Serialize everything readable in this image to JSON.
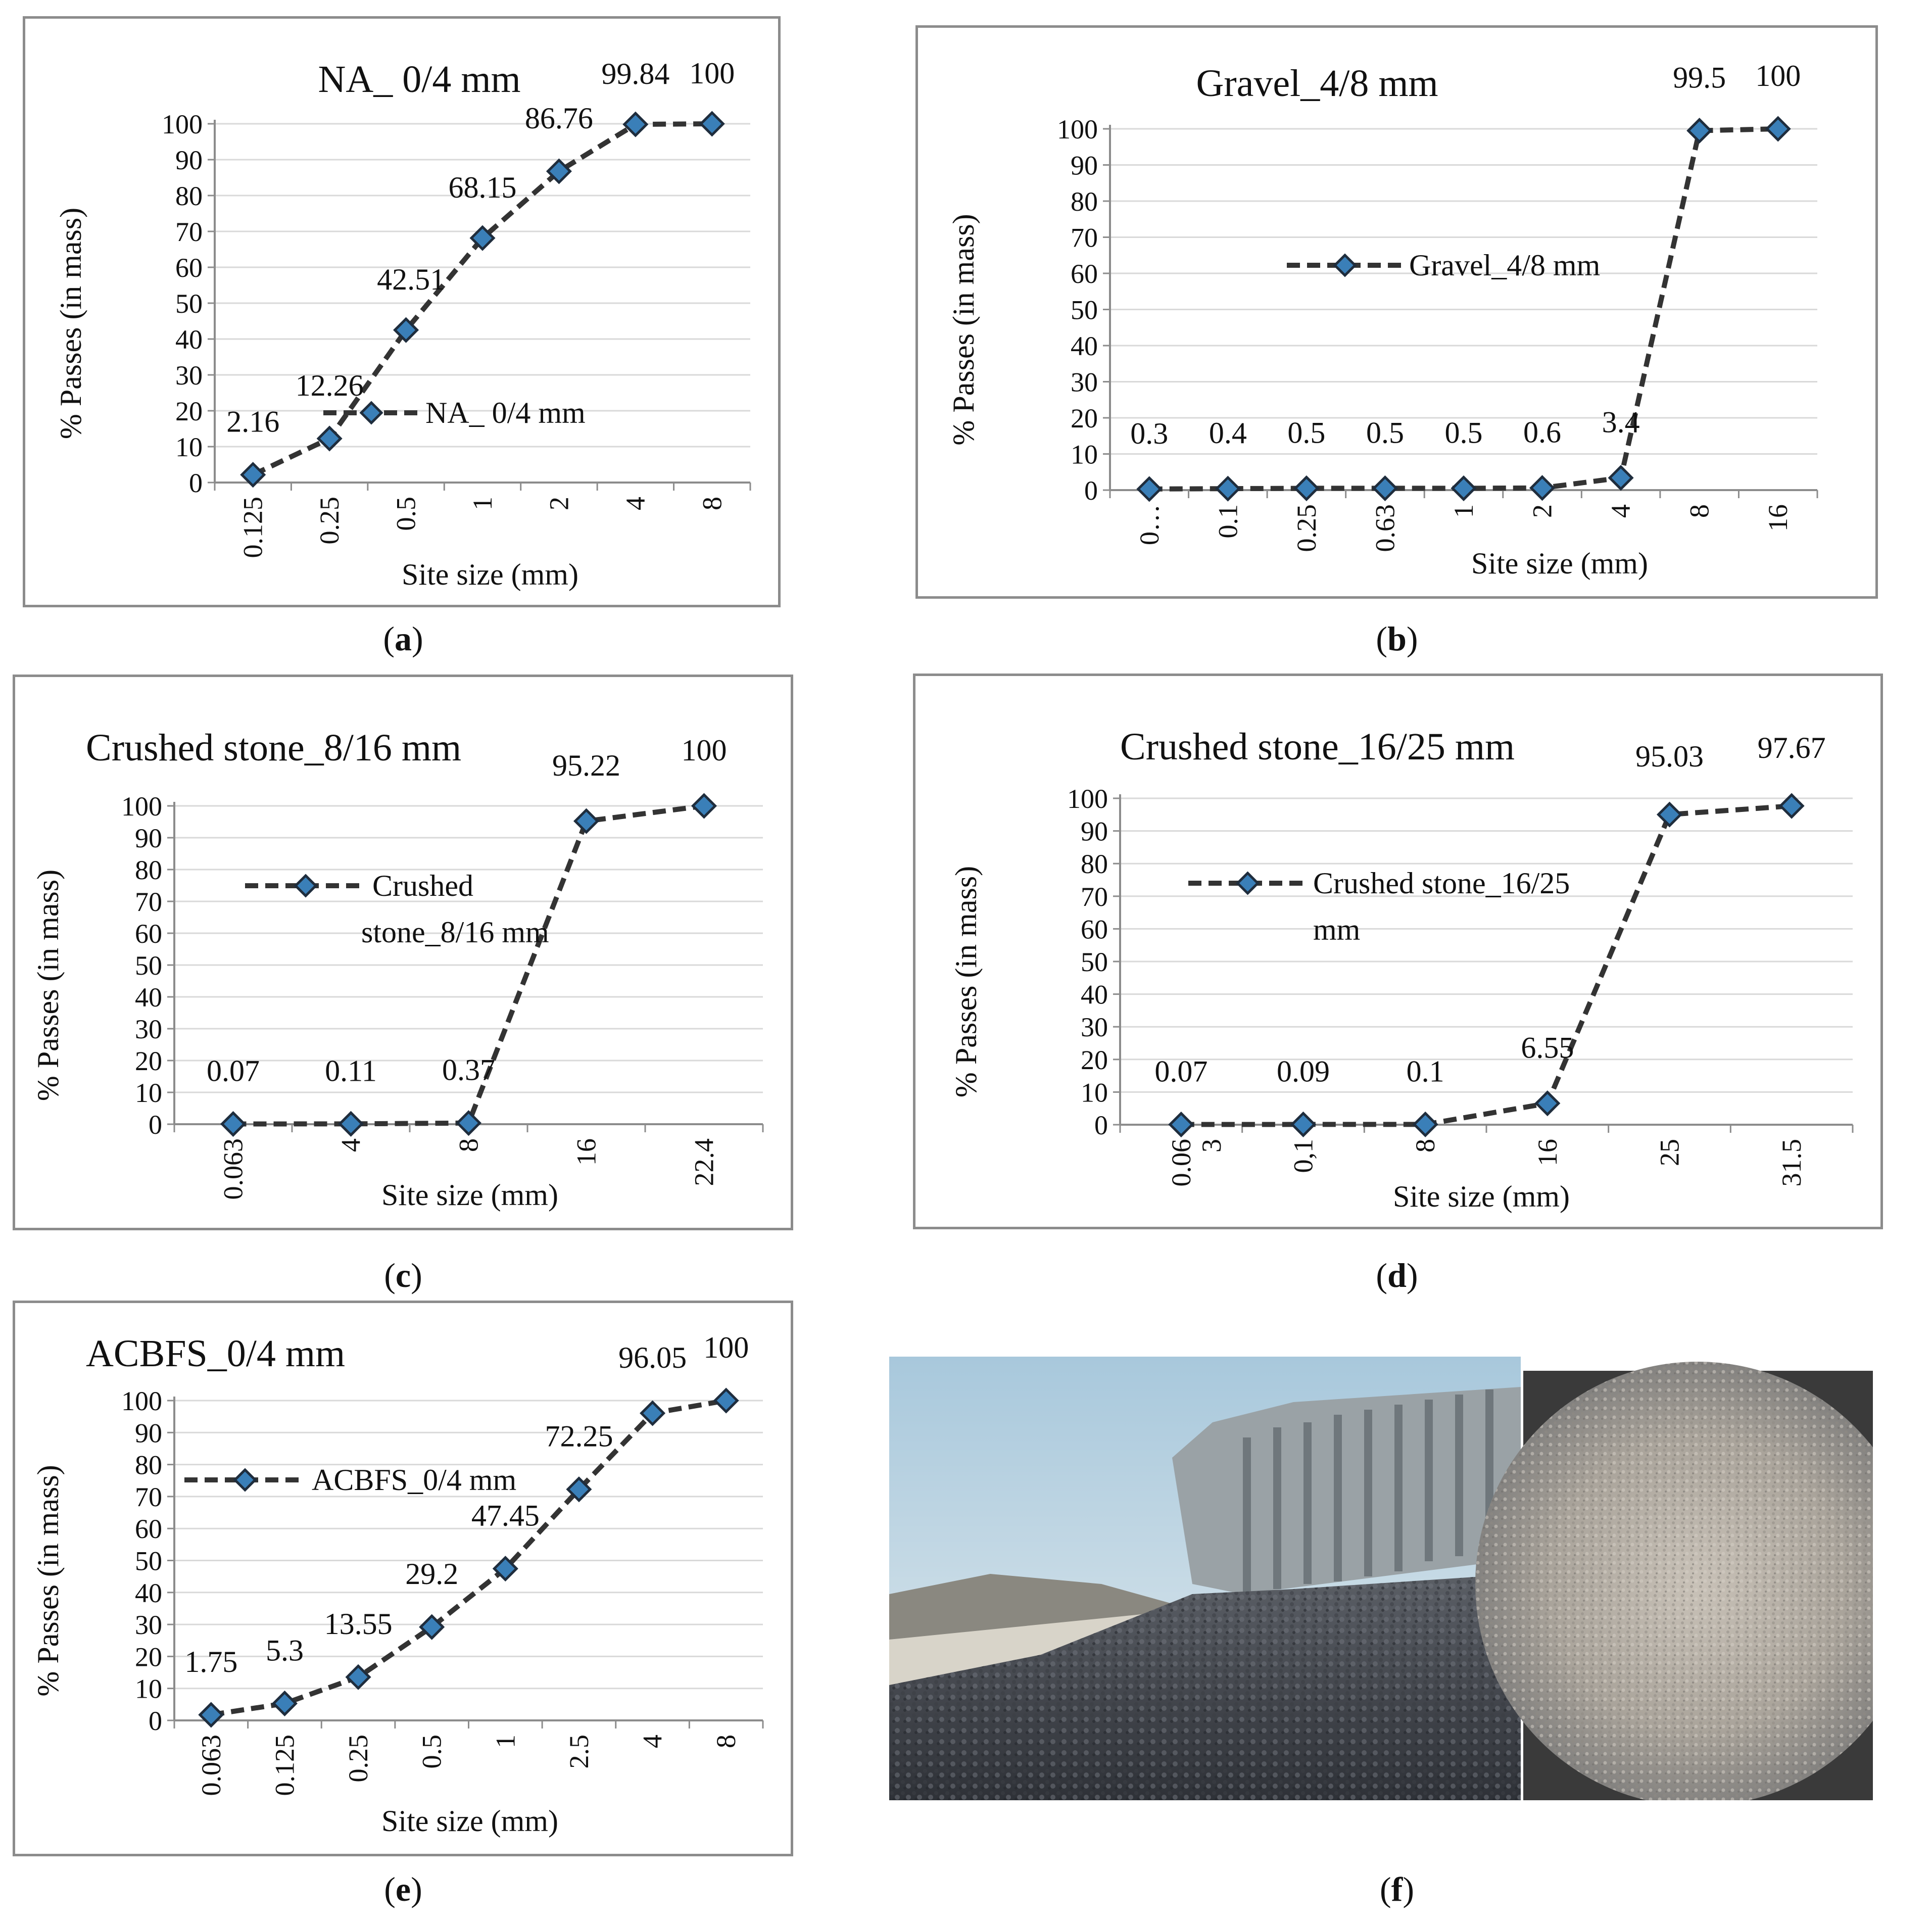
{
  "captions": [
    "a",
    "b",
    "c",
    "d",
    "e",
    "f"
  ],
  "colors": {
    "line": "#333333",
    "marker_fill": "#3a7fb8",
    "marker_stroke": "#1f2d3d",
    "grid": "#d9d9d9",
    "axis": "#8c8c8c"
  },
  "chart_data": [
    {
      "type": "line",
      "title": "NA_ 0/4 mm",
      "xlabel": "Site size (mm)",
      "ylabel": "% Passes (in mass)",
      "categories": [
        "0.125",
        "0.25",
        "0.5",
        "1",
        "2",
        "4",
        "8"
      ],
      "series": [
        {
          "name": "NA_ 0/4 mm",
          "values": [
            2.16,
            12.26,
            42.51,
            68.15,
            86.76,
            99.84,
            100
          ]
        }
      ],
      "data_labels": [
        "2.16",
        "12.26",
        "42.51",
        "68.15",
        "86.76",
        "99.84",
        "100"
      ],
      "ylim": [
        0,
        100
      ],
      "yticks": [
        "0",
        "10",
        "20",
        "30",
        "40",
        "50",
        "60",
        "70",
        "80",
        "90",
        "100"
      ],
      "grid": true,
      "legend": "inside-middle"
    },
    {
      "type": "line",
      "title": "Gravel_4/8 mm",
      "xlabel": "Site size (mm)",
      "ylabel": "% Passes (in mass)",
      "categories": [
        "0…",
        "0.1",
        "0.25",
        "0.63",
        "1",
        "2",
        "4",
        "8",
        "16"
      ],
      "series": [
        {
          "name": "Gravel_4/8 mm",
          "values": [
            0.3,
            0.4,
            0.5,
            0.5,
            0.5,
            0.6,
            3.4,
            99.5,
            100
          ]
        }
      ],
      "data_labels": [
        "0.3",
        "0.4",
        "0.5",
        "0.5",
        "0.5",
        "0.6",
        "3.4",
        "99.5",
        "100"
      ],
      "ylim": [
        0,
        100
      ],
      "yticks": [
        "0",
        "10",
        "20",
        "30",
        "40",
        "50",
        "60",
        "70",
        "80",
        "90",
        "100"
      ],
      "grid": true,
      "legend": "inside-middle"
    },
    {
      "type": "line",
      "title": "Crushed stone_8/16 mm",
      "xlabel": "Site size (mm)",
      "ylabel": "% Passes (in mass)",
      "categories": [
        "0.063",
        "4",
        "8",
        "16",
        "22.4"
      ],
      "series": [
        {
          "name": "Crushed stone_8/16 mm",
          "values": [
            0.07,
            0.11,
            0.37,
            95.22,
            100
          ]
        }
      ],
      "legend_lines": [
        "Crushed",
        "stone_8/16 mm"
      ],
      "data_labels": [
        "0.07",
        "0.11",
        "0.37",
        "95.22",
        "100"
      ],
      "ylim": [
        0,
        100
      ],
      "yticks": [
        "0",
        "10",
        "20",
        "30",
        "40",
        "50",
        "60",
        "70",
        "80",
        "90",
        "100"
      ],
      "grid": true,
      "legend": "inside-top-left"
    },
    {
      "type": "line",
      "title": "Crushed stone_16/25 mm",
      "xlabel": "Site size (mm)",
      "ylabel": "% Passes (in mass)",
      "categories": [
        "0.063",
        "0,1",
        "8",
        "16",
        "25",
        "31.5"
      ],
      "category_display": [
        [
          "0.06",
          "3"
        ],
        [
          "0,1"
        ],
        [
          "8"
        ],
        [
          "16"
        ],
        [
          "25"
        ],
        [
          "31.5"
        ]
      ],
      "series": [
        {
          "name": "Crushed stone_16/25 mm",
          "values": [
            0.07,
            0.09,
            0.1,
            6.55,
            95.03,
            97.67
          ]
        }
      ],
      "legend_lines": [
        "Crushed stone_16/25",
        "mm"
      ],
      "data_labels": [
        "0.07",
        "0.09",
        "0.1",
        "6.55",
        "95.03",
        "97.67"
      ],
      "ylim": [
        0,
        100
      ],
      "yticks": [
        "0",
        "10",
        "20",
        "30",
        "40",
        "50",
        "60",
        "70",
        "80",
        "90",
        "100"
      ],
      "grid": true,
      "legend": "inside-top-left"
    },
    {
      "type": "line",
      "title": "ACBFS_0/4 mm",
      "xlabel": "Site size (mm)",
      "ylabel": "% Passes (in mass)",
      "categories": [
        "0.063",
        "0.125",
        "0.25",
        "0.5",
        "1",
        "2.5",
        "4",
        "8"
      ],
      "series": [
        {
          "name": "ACBFS_0/4 mm",
          "values": [
            1.75,
            5.3,
            13.55,
            29.2,
            47.45,
            72.25,
            96.05,
            100
          ]
        }
      ],
      "data_labels": [
        "1.75",
        "5.3",
        "13.55",
        "29.2",
        "47.45",
        "72.25",
        "96.05",
        "100"
      ],
      "ylim": [
        0,
        100
      ],
      "yticks": [
        "0",
        "10",
        "20",
        "30",
        "40",
        "50",
        "60",
        "70",
        "80",
        "90",
        "100"
      ],
      "grid": true,
      "legend": "inside-top-left"
    }
  ]
}
